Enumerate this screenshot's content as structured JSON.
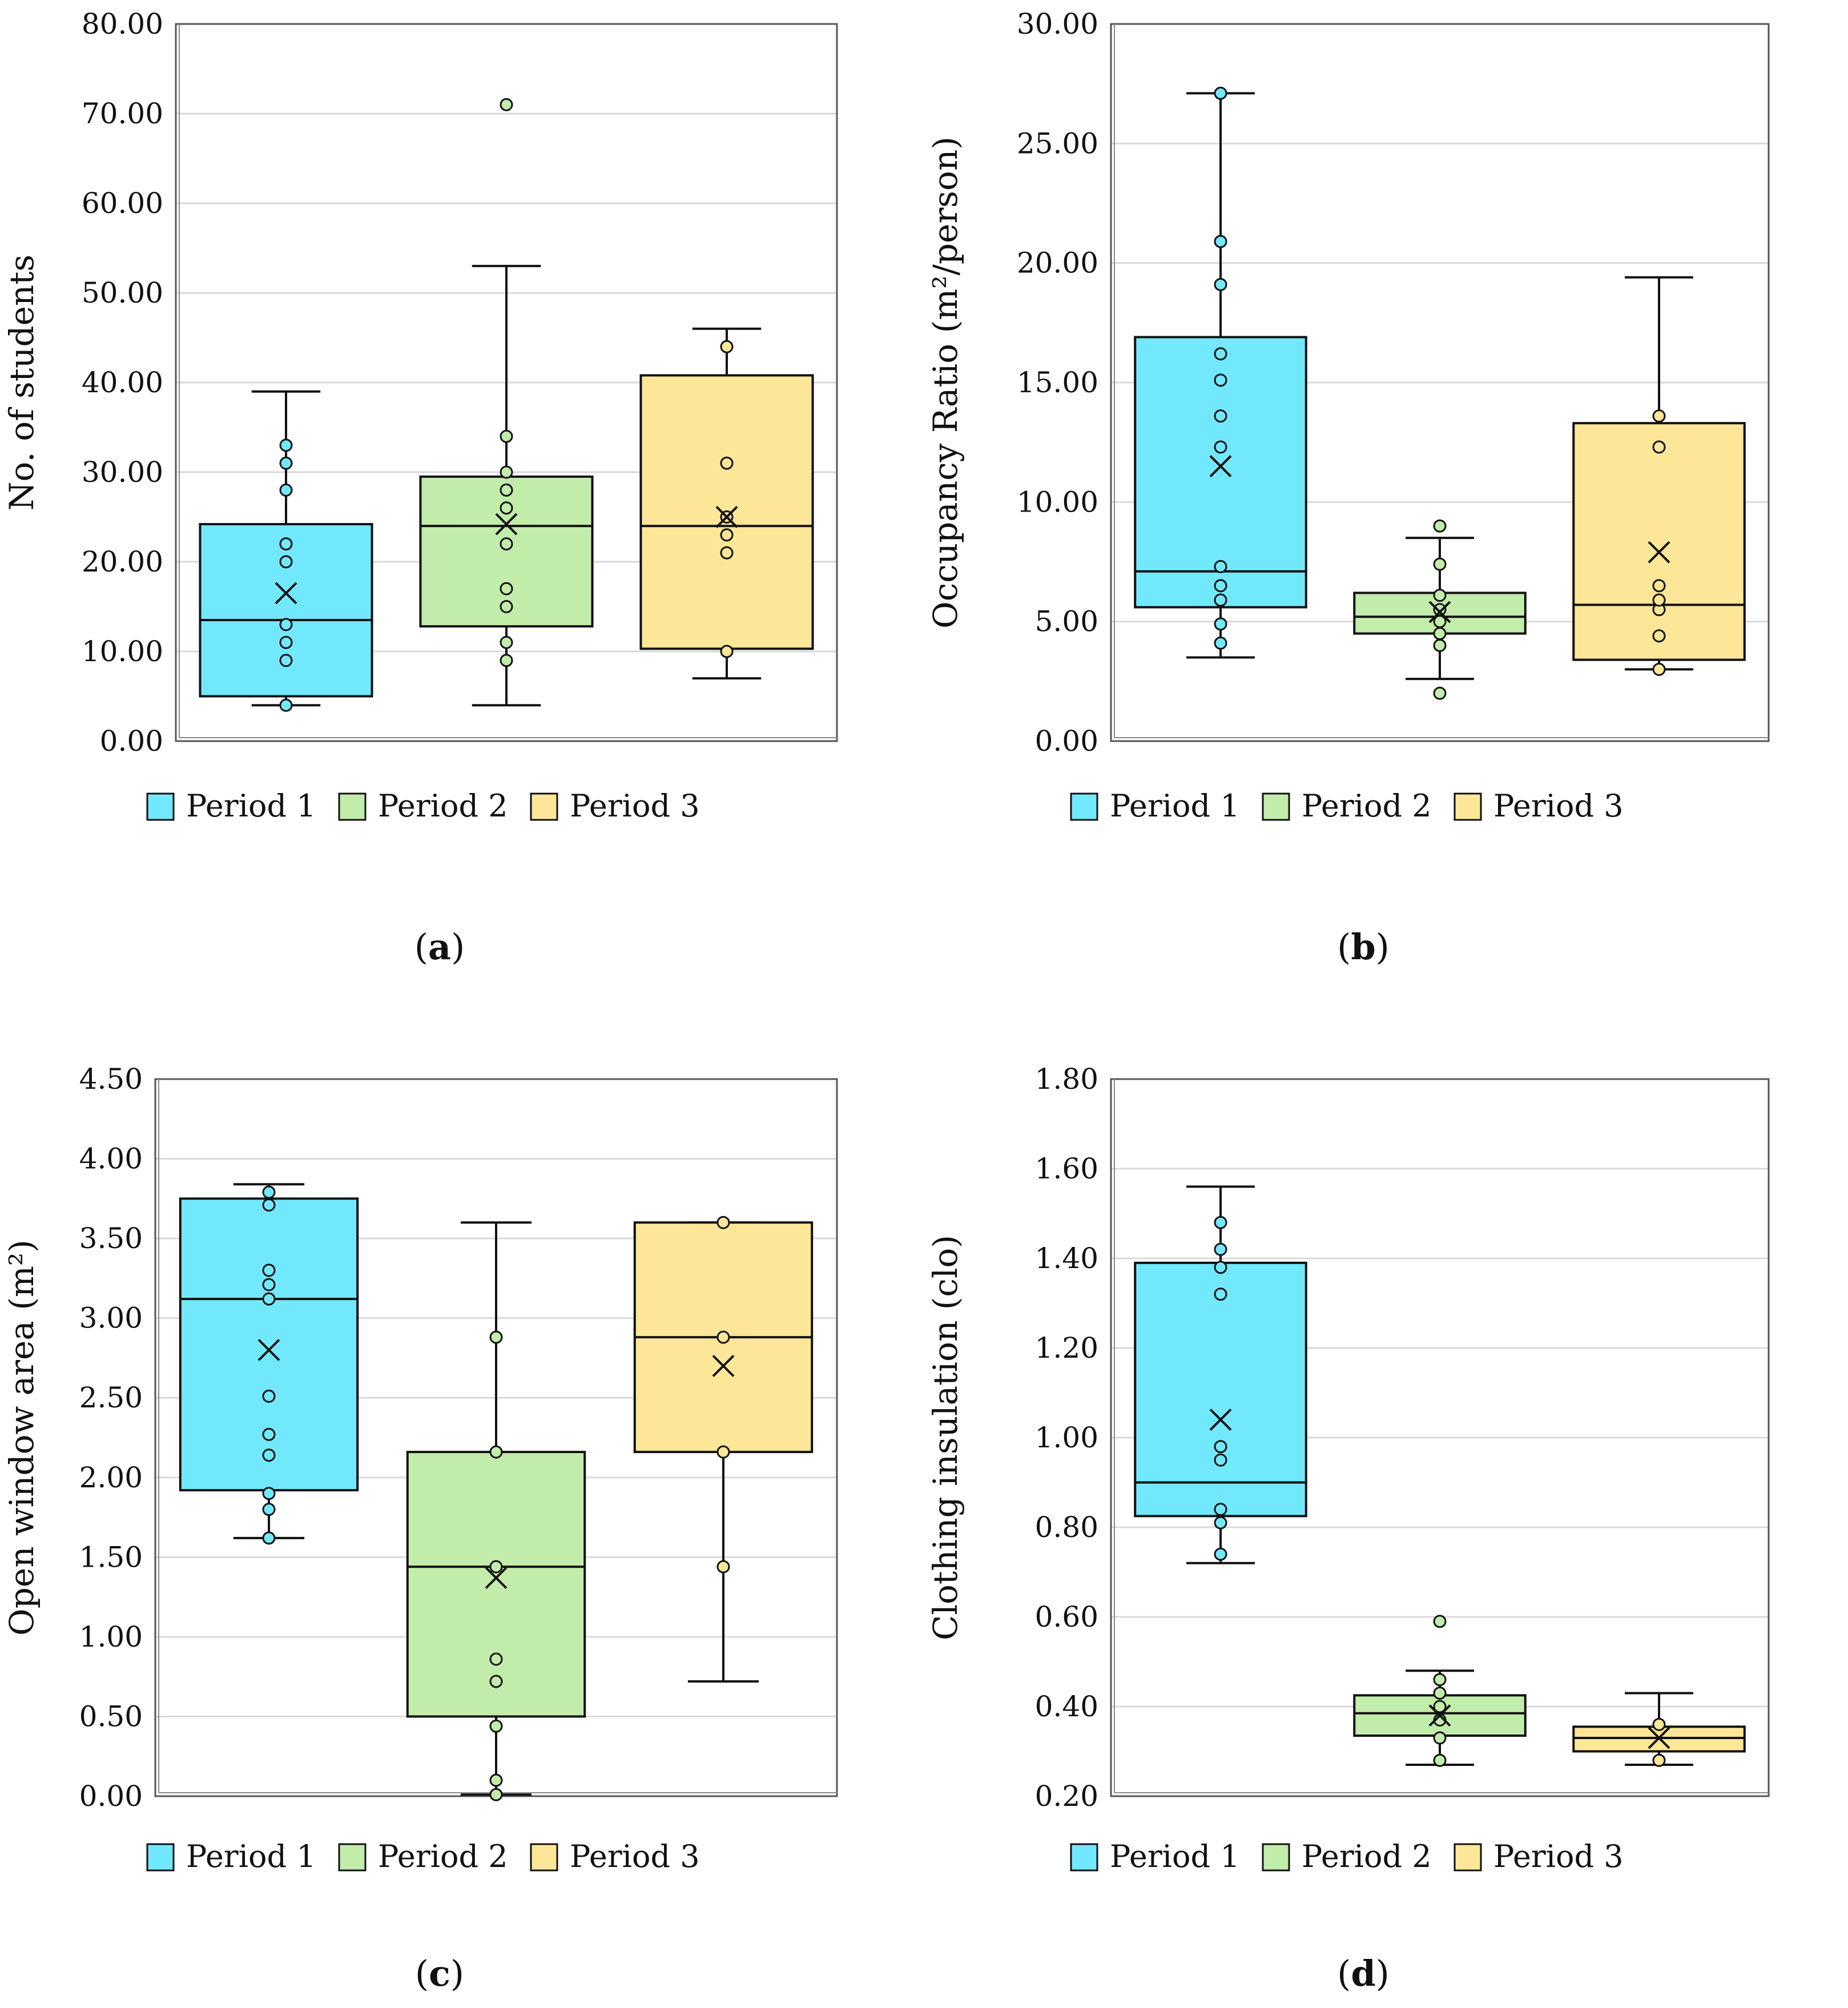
{
  "colors": {
    "period1": "#72e8fd",
    "period2": "#c2ecaa",
    "period3": "#fde697",
    "grid": "#d9d9d9",
    "stroke": "#111111"
  },
  "chart_data": [
    {
      "type": "box",
      "caption": "a",
      "ylabel": "No. of students",
      "ylim": [
        0,
        80
      ],
      "ticks": [
        "0.00",
        "10.00",
        "20.00",
        "30.00",
        "40.00",
        "50.00",
        "60.00",
        "70.00",
        "80.00"
      ],
      "legend": [
        "Period 1",
        "Period 2",
        "Period 3"
      ],
      "series": [
        {
          "name": "Period 1",
          "min": 4,
          "q1": 5,
          "median": 13.5,
          "q3": 24.2,
          "max": 39,
          "mean": 16.5,
          "points": [
            4,
            9,
            11,
            13,
            20,
            22,
            28,
            31,
            33
          ]
        },
        {
          "name": "Period 2",
          "min": 4,
          "q1": 12.8,
          "median": 24,
          "q3": 29.5,
          "max": 53,
          "mean": 24.2,
          "points": [
            9,
            11,
            15,
            17,
            22,
            26,
            28,
            30,
            34,
            71
          ]
        },
        {
          "name": "Period 3",
          "min": 7,
          "q1": 10.3,
          "median": 24,
          "q3": 40.8,
          "max": 46,
          "mean": 25,
          "points": [
            10,
            21,
            23,
            25,
            31,
            44
          ]
        }
      ]
    },
    {
      "type": "box",
      "caption": "b",
      "ylabel": "Occupancy Ratio (m²/person)",
      "ylim": [
        0,
        30
      ],
      "ticks": [
        "0.00",
        "5.00",
        "10.00",
        "15.00",
        "20.00",
        "25.00",
        "30.00"
      ],
      "legend": [
        "Period 1",
        "Period 2",
        "Period 3"
      ],
      "series": [
        {
          "name": "Period 1",
          "min": 3.5,
          "q1": 5.6,
          "median": 7.1,
          "q3": 16.9,
          "max": 27.1,
          "mean": 11.5,
          "points": [
            4.1,
            4.9,
            5.9,
            6.5,
            7.3,
            12.3,
            13.6,
            15.1,
            16.2,
            19.1,
            20.9,
            27.1
          ]
        },
        {
          "name": "Period 2",
          "min": 2.6,
          "q1": 4.5,
          "median": 5.2,
          "q3": 6.2,
          "max": 8.5,
          "mean": 5.4,
          "points": [
            2,
            4,
            4.5,
            5,
            5.5,
            6.1,
            7.4,
            9
          ]
        },
        {
          "name": "Period 3",
          "min": 3,
          "q1": 3.4,
          "median": 5.7,
          "q3": 13.3,
          "max": 19.4,
          "mean": 7.9,
          "points": [
            3,
            4.4,
            5.5,
            5.9,
            6.5,
            12.3,
            13.6
          ]
        }
      ]
    },
    {
      "type": "box",
      "caption": "c",
      "ylabel": "Open window area (m²)",
      "ylim": [
        0,
        4.5
      ],
      "ticks": [
        "0.00",
        "0.50",
        "1.00",
        "1.50",
        "2.00",
        "2.50",
        "3.00",
        "3.50",
        "4.00",
        "4.50"
      ],
      "legend": [
        "Period 1",
        "Period 2",
        "Period 3"
      ],
      "series": [
        {
          "name": "Period 1",
          "min": 1.62,
          "q1": 1.92,
          "median": 3.12,
          "q3": 3.75,
          "max": 3.84,
          "mean": 2.8,
          "points": [
            1.62,
            1.8,
            1.9,
            2.14,
            2.27,
            2.51,
            3.12,
            3.21,
            3.3,
            3.71,
            3.79
          ]
        },
        {
          "name": "Period 2",
          "min": 0.01,
          "q1": 0.5,
          "median": 1.44,
          "q3": 2.16,
          "max": 3.6,
          "mean": 1.37,
          "points": [
            0.01,
            0.1,
            0.44,
            0.72,
            0.86,
            1.44,
            2.16,
            2.88
          ]
        },
        {
          "name": "Period 3",
          "min": 0.72,
          "q1": 2.16,
          "median": 2.88,
          "q3": 3.6,
          "max": 3.6,
          "mean": 2.7,
          "points": [
            1.44,
            2.16,
            2.88,
            3.6
          ]
        }
      ]
    },
    {
      "type": "box",
      "caption": "d",
      "ylabel": "Clothing insulation (clo)",
      "ylim": [
        0.2,
        1.8
      ],
      "ticks": [
        "0.20",
        "0.40",
        "0.60",
        "0.80",
        "1.00",
        "1.20",
        "1.40",
        "1.60",
        "1.80"
      ],
      "legend": [
        "Period 1",
        "Period 2",
        "Period 3"
      ],
      "series": [
        {
          "name": "Period 1",
          "min": 0.72,
          "q1": 0.825,
          "median": 0.9,
          "q3": 1.39,
          "max": 1.56,
          "mean": 1.04,
          "points": [
            0.74,
            0.81,
            0.84,
            0.95,
            0.98,
            1.32,
            1.38,
            1.42,
            1.48
          ]
        },
        {
          "name": "Period 2",
          "min": 0.27,
          "q1": 0.335,
          "median": 0.385,
          "q3": 0.425,
          "max": 0.48,
          "mean": 0.38,
          "points": [
            0.28,
            0.33,
            0.37,
            0.4,
            0.43,
            0.46,
            0.59
          ]
        },
        {
          "name": "Period 3",
          "min": 0.27,
          "q1": 0.3,
          "median": 0.33,
          "q3": 0.355,
          "max": 0.43,
          "mean": 0.33,
          "points": [
            0.28,
            0.36
          ]
        }
      ]
    }
  ]
}
